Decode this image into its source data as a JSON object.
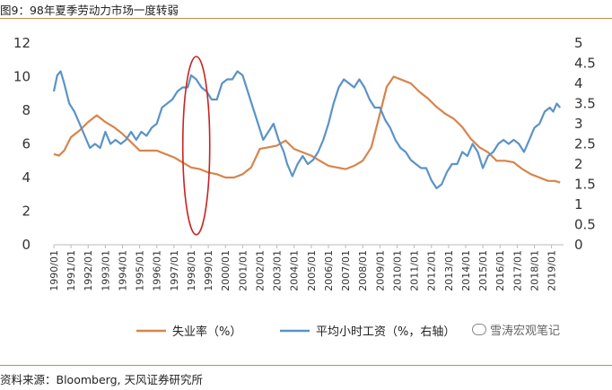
{
  "header": {
    "title": "图9：98年夏季劳动力市场一度转弱"
  },
  "footer": {
    "source": "资料来源：Bloomberg, 天风证券研究所"
  },
  "watermark": {
    "text": "雪涛宏观笔记",
    "icon": "wechat-icon"
  },
  "colors": {
    "unemployment": "#d8844a",
    "wage": "#5b93c7",
    "annotation": "#cc2222",
    "axis": "#bbbbbb"
  },
  "chart_data": {
    "type": "line",
    "title": "98年夏季劳动力市场一度转弱",
    "x_labels": [
      "1990/01",
      "1991/01",
      "1992/01",
      "1993/01",
      "1994/01",
      "1995/01",
      "1996/01",
      "1997/01",
      "1998/01",
      "1999/01",
      "2000/01",
      "2001/01",
      "2002/01",
      "2003/01",
      "2004/01",
      "2005/01",
      "2006/01",
      "2007/01",
      "2008/01",
      "2009/01",
      "2010/01",
      "2011/01",
      "2012/01",
      "2013/01",
      "2014/01",
      "2015/01",
      "2016/01",
      "2017/01",
      "2018/01",
      "2019/01"
    ],
    "x_range": [
      1990,
      2019.7
    ],
    "y_left": {
      "ticks": [
        "0",
        "2",
        "4",
        "6",
        "8",
        "10",
        "12"
      ],
      "range": [
        0,
        12
      ]
    },
    "y_right": {
      "ticks": [
        "0",
        "0.5",
        "1",
        "1.5",
        "2",
        "2.5",
        "3",
        "3.5",
        "4",
        "4.5",
        "5"
      ],
      "range": [
        0,
        5
      ]
    },
    "series": [
      {
        "name": "失业率（%）",
        "axis": "left",
        "points": [
          [
            1990.0,
            5.4
          ],
          [
            1990.3,
            5.3
          ],
          [
            1990.6,
            5.6
          ],
          [
            1991.0,
            6.4
          ],
          [
            1991.5,
            6.8
          ],
          [
            1992.0,
            7.3
          ],
          [
            1992.5,
            7.7
          ],
          [
            1993.0,
            7.3
          ],
          [
            1993.5,
            7.0
          ],
          [
            1994.0,
            6.6
          ],
          [
            1994.5,
            6.1
          ],
          [
            1995.0,
            5.6
          ],
          [
            1995.5,
            5.6
          ],
          [
            1996.0,
            5.6
          ],
          [
            1996.5,
            5.4
          ],
          [
            1997.0,
            5.2
          ],
          [
            1997.5,
            4.9
          ],
          [
            1998.0,
            4.6
          ],
          [
            1998.5,
            4.5
          ],
          [
            1999.0,
            4.3
          ],
          [
            1999.5,
            4.2
          ],
          [
            2000.0,
            4.0
          ],
          [
            2000.5,
            4.0
          ],
          [
            2001.0,
            4.2
          ],
          [
            2001.5,
            4.6
          ],
          [
            2002.0,
            5.7
          ],
          [
            2002.5,
            5.8
          ],
          [
            2003.0,
            5.9
          ],
          [
            2003.5,
            6.2
          ],
          [
            2004.0,
            5.7
          ],
          [
            2004.5,
            5.5
          ],
          [
            2005.0,
            5.3
          ],
          [
            2005.5,
            5.0
          ],
          [
            2006.0,
            4.7
          ],
          [
            2006.5,
            4.6
          ],
          [
            2007.0,
            4.5
          ],
          [
            2007.5,
            4.7
          ],
          [
            2008.0,
            5.0
          ],
          [
            2008.5,
            5.8
          ],
          [
            2009.0,
            7.8
          ],
          [
            2009.4,
            9.4
          ],
          [
            2009.8,
            10.0
          ],
          [
            2010.3,
            9.8
          ],
          [
            2010.8,
            9.6
          ],
          [
            2011.3,
            9.1
          ],
          [
            2011.8,
            8.7
          ],
          [
            2012.3,
            8.2
          ],
          [
            2012.8,
            7.8
          ],
          [
            2013.3,
            7.5
          ],
          [
            2013.8,
            7.0
          ],
          [
            2014.3,
            6.3
          ],
          [
            2014.8,
            5.8
          ],
          [
            2015.3,
            5.5
          ],
          [
            2015.8,
            5.0
          ],
          [
            2016.3,
            5.0
          ],
          [
            2016.8,
            4.9
          ],
          [
            2017.3,
            4.5
          ],
          [
            2017.8,
            4.2
          ],
          [
            2018.3,
            4.0
          ],
          [
            2018.8,
            3.8
          ],
          [
            2019.2,
            3.8
          ],
          [
            2019.5,
            3.7
          ]
        ]
      },
      {
        "name": "平均小时工资（%，右轴）",
        "axis": "right",
        "points": [
          [
            1990.0,
            3.8
          ],
          [
            1990.2,
            4.2
          ],
          [
            1990.4,
            4.3
          ],
          [
            1990.6,
            4.0
          ],
          [
            1990.9,
            3.5
          ],
          [
            1991.2,
            3.3
          ],
          [
            1991.5,
            3.0
          ],
          [
            1991.8,
            2.7
          ],
          [
            1992.1,
            2.4
          ],
          [
            1992.4,
            2.5
          ],
          [
            1992.7,
            2.4
          ],
          [
            1993.0,
            2.8
          ],
          [
            1993.3,
            2.5
          ],
          [
            1993.6,
            2.6
          ],
          [
            1993.9,
            2.5
          ],
          [
            1994.2,
            2.6
          ],
          [
            1994.5,
            2.8
          ],
          [
            1994.8,
            2.6
          ],
          [
            1995.1,
            2.8
          ],
          [
            1995.4,
            2.7
          ],
          [
            1995.7,
            2.9
          ],
          [
            1996.0,
            3.0
          ],
          [
            1996.3,
            3.4
          ],
          [
            1996.6,
            3.5
          ],
          [
            1996.9,
            3.6
          ],
          [
            1997.2,
            3.8
          ],
          [
            1997.5,
            3.9
          ],
          [
            1997.8,
            3.9
          ],
          [
            1998.0,
            4.2
          ],
          [
            1998.3,
            4.1
          ],
          [
            1998.6,
            3.9
          ],
          [
            1998.9,
            3.8
          ],
          [
            1999.2,
            3.6
          ],
          [
            1999.5,
            3.6
          ],
          [
            1999.8,
            4.0
          ],
          [
            2000.1,
            4.1
          ],
          [
            2000.4,
            4.1
          ],
          [
            2000.7,
            4.3
          ],
          [
            2001.0,
            4.2
          ],
          [
            2001.3,
            3.8
          ],
          [
            2001.6,
            3.4
          ],
          [
            2001.9,
            3.0
          ],
          [
            2002.2,
            2.6
          ],
          [
            2002.5,
            2.8
          ],
          [
            2002.8,
            3.0
          ],
          [
            2003.1,
            2.6
          ],
          [
            2003.4,
            2.3
          ],
          [
            2003.6,
            2.0
          ],
          [
            2003.9,
            1.7
          ],
          [
            2004.2,
            2.0
          ],
          [
            2004.5,
            2.2
          ],
          [
            2004.8,
            2.0
          ],
          [
            2005.1,
            2.1
          ],
          [
            2005.4,
            2.3
          ],
          [
            2005.7,
            2.6
          ],
          [
            2006.0,
            3.0
          ],
          [
            2006.3,
            3.5
          ],
          [
            2006.6,
            3.9
          ],
          [
            2006.9,
            4.1
          ],
          [
            2007.2,
            4.0
          ],
          [
            2007.5,
            3.9
          ],
          [
            2007.8,
            4.1
          ],
          [
            2008.1,
            3.9
          ],
          [
            2008.4,
            3.6
          ],
          [
            2008.7,
            3.4
          ],
          [
            2009.0,
            3.4
          ],
          [
            2009.3,
            3.1
          ],
          [
            2009.6,
            2.9
          ],
          [
            2009.9,
            2.6
          ],
          [
            2010.2,
            2.4
          ],
          [
            2010.5,
            2.3
          ],
          [
            2010.8,
            2.1
          ],
          [
            2011.1,
            2.0
          ],
          [
            2011.4,
            1.9
          ],
          [
            2011.7,
            1.9
          ],
          [
            2012.0,
            1.6
          ],
          [
            2012.3,
            1.4
          ],
          [
            2012.6,
            1.5
          ],
          [
            2012.9,
            1.8
          ],
          [
            2013.2,
            2.0
          ],
          [
            2013.5,
            2.0
          ],
          [
            2013.8,
            2.3
          ],
          [
            2014.1,
            2.2
          ],
          [
            2014.4,
            2.5
          ],
          [
            2014.7,
            2.3
          ],
          [
            2015.0,
            1.9
          ],
          [
            2015.3,
            2.2
          ],
          [
            2015.6,
            2.3
          ],
          [
            2015.9,
            2.5
          ],
          [
            2016.2,
            2.6
          ],
          [
            2016.5,
            2.5
          ],
          [
            2016.8,
            2.6
          ],
          [
            2017.1,
            2.5
          ],
          [
            2017.4,
            2.3
          ],
          [
            2017.7,
            2.6
          ],
          [
            2018.0,
            2.9
          ],
          [
            2018.3,
            3.0
          ],
          [
            2018.6,
            3.3
          ],
          [
            2018.9,
            3.4
          ],
          [
            2019.1,
            3.3
          ],
          [
            2019.3,
            3.5
          ],
          [
            2019.5,
            3.4
          ]
        ]
      }
    ],
    "annotation": {
      "shape": "ellipse",
      "year": 1998.3,
      "y_from": 0.6,
      "y_to": 11.2
    },
    "legend": {
      "position": "bottom",
      "entries": [
        "失业率（%）",
        "平均小时工资（%，右轴）"
      ]
    }
  }
}
